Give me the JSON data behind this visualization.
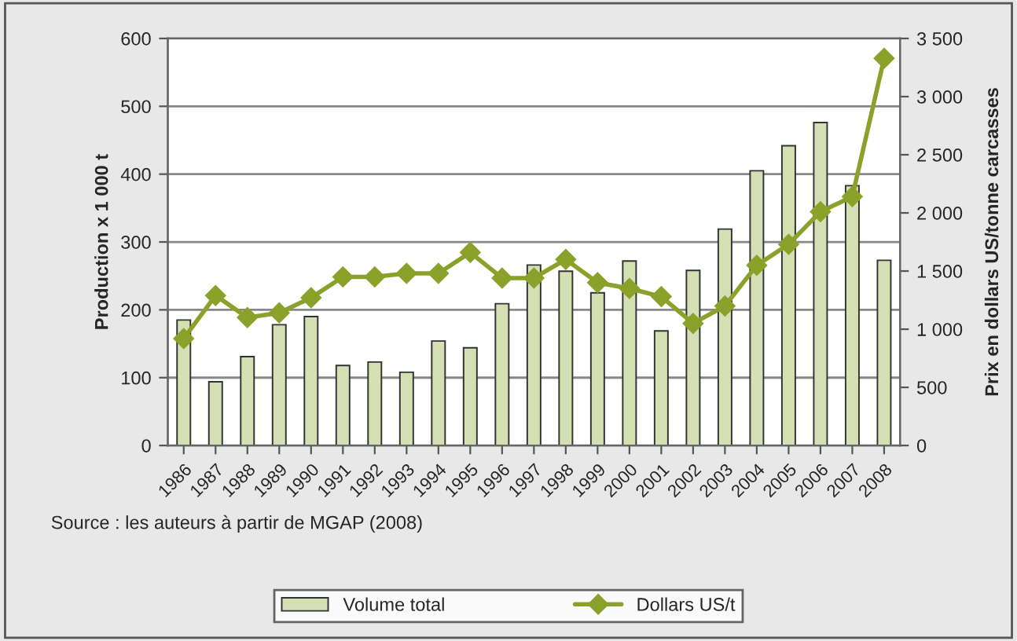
{
  "chart_data": {
    "type": "bar",
    "categories": [
      "1986",
      "1987",
      "1988",
      "1989",
      "1990",
      "1991",
      "1992",
      "1993",
      "1994",
      "1995",
      "1996",
      "1997",
      "1998",
      "1999",
      "2000",
      "2001",
      "2002",
      "2003",
      "2004",
      "2005",
      "2006",
      "2007",
      "2008"
    ],
    "series": [
      {
        "name": "Volume total",
        "color": "#d5dfb4",
        "values": [
          185,
          94,
          131,
          178,
          190,
          118,
          123,
          108,
          154,
          144,
          209,
          266,
          257,
          225,
          272,
          169,
          258,
          319,
          405,
          442,
          476,
          383,
          273
        ]
      },
      {
        "name": "Dollars US/t",
        "type": "line",
        "axis": "y2",
        "color": "#8aa12a",
        "values": [
          920,
          1290,
          1100,
          1140,
          1270,
          1450,
          1450,
          1480,
          1480,
          1660,
          1440,
          1440,
          1600,
          1400,
          1350,
          1280,
          1050,
          1200,
          1550,
          1730,
          2010,
          2140,
          3330
        ]
      }
    ],
    "ylabel": "Production x 1 000 t",
    "y2label": "Prix en dollars US/tonne carcasses",
    "ylim": [
      0,
      600
    ],
    "yticks": [
      0,
      100,
      200,
      300,
      400,
      500,
      600
    ],
    "y2lim": [
      0,
      3500
    ],
    "y2ticks": [
      0,
      {
        "value": 500,
        "label": "500"
      },
      {
        "value": 1000,
        "label": "1 000"
      },
      {
        "value": 1500,
        "label": "1 500"
      },
      {
        "value": 2000,
        "label": "2 000"
      },
      {
        "value": 2500,
        "label": "2 500"
      },
      {
        "value": 3000,
        "label": "3 000"
      },
      {
        "value": 3500,
        "label": "3 500"
      }
    ],
    "grid": "y",
    "legend": "bottom",
    "marker": "diamond",
    "line_style": "solid",
    "annotations": [
      "Source : les auteurs à partir de MGAP (2008)"
    ]
  }
}
